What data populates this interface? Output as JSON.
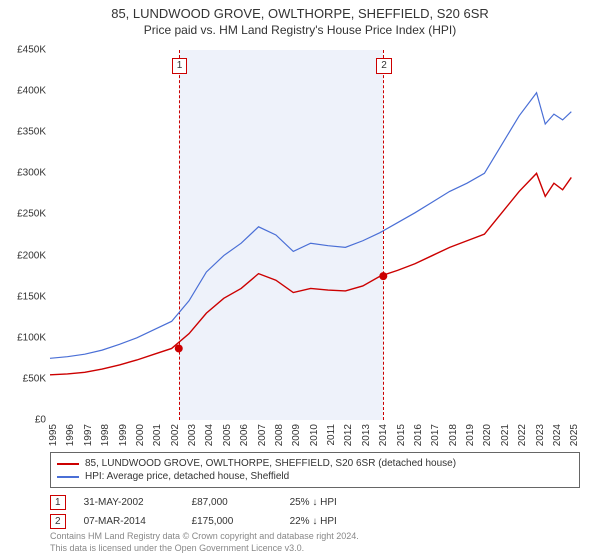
{
  "title": "85, LUNDWOOD GROVE, OWLTHORPE, SHEFFIELD, S20 6SR",
  "subtitle": "Price paid vs. HM Land Registry's House Price Index (HPI)",
  "chart": {
    "type": "line",
    "background_color": "#ffffff",
    "band_color": "#eef2fa",
    "band_start_year": 2002.41,
    "band_end_year": 2014.18,
    "x": {
      "min": 1995,
      "max": 2025.5,
      "years": [
        1995,
        1996,
        1997,
        1998,
        1999,
        2000,
        2001,
        2002,
        2003,
        2004,
        2005,
        2006,
        2007,
        2008,
        2009,
        2010,
        2011,
        2012,
        2013,
        2014,
        2015,
        2016,
        2017,
        2018,
        2019,
        2020,
        2021,
        2022,
        2023,
        2024,
        2025
      ]
    },
    "y": {
      "min": 0,
      "max": 450000,
      "step": 50000,
      "prefix": "£",
      "suffix": "K",
      "divisor": 1000
    },
    "axis_fontsize": 10,
    "series": {
      "hpi": {
        "label": "HPI: Average price, detached house, Sheffield",
        "color": "#4a6fd6",
        "width": 1.2,
        "points": [
          [
            1995,
            75000
          ],
          [
            1996,
            77000
          ],
          [
            1997,
            80000
          ],
          [
            1998,
            85000
          ],
          [
            1999,
            92000
          ],
          [
            2000,
            100000
          ],
          [
            2001,
            110000
          ],
          [
            2002,
            120000
          ],
          [
            2003,
            145000
          ],
          [
            2004,
            180000
          ],
          [
            2005,
            200000
          ],
          [
            2006,
            215000
          ],
          [
            2007,
            235000
          ],
          [
            2008,
            225000
          ],
          [
            2009,
            205000
          ],
          [
            2010,
            215000
          ],
          [
            2011,
            212000
          ],
          [
            2012,
            210000
          ],
          [
            2013,
            218000
          ],
          [
            2014,
            228000
          ],
          [
            2015,
            240000
          ],
          [
            2016,
            252000
          ],
          [
            2017,
            265000
          ],
          [
            2018,
            278000
          ],
          [
            2019,
            288000
          ],
          [
            2020,
            300000
          ],
          [
            2021,
            335000
          ],
          [
            2022,
            370000
          ],
          [
            2023,
            398000
          ],
          [
            2023.5,
            360000
          ],
          [
            2024,
            372000
          ],
          [
            2024.5,
            365000
          ],
          [
            2025,
            375000
          ]
        ]
      },
      "property": {
        "label": "85, LUNDWOOD GROVE, OWLTHORPE, SHEFFIELD, S20 6SR (detached house)",
        "color": "#cc0000",
        "width": 1.4,
        "points": [
          [
            1995,
            55000
          ],
          [
            1996,
            56000
          ],
          [
            1997,
            58000
          ],
          [
            1998,
            62000
          ],
          [
            1999,
            67000
          ],
          [
            2000,
            73000
          ],
          [
            2001,
            80000
          ],
          [
            2002,
            87000
          ],
          [
            2003,
            105000
          ],
          [
            2004,
            130000
          ],
          [
            2005,
            148000
          ],
          [
            2006,
            160000
          ],
          [
            2007,
            178000
          ],
          [
            2008,
            170000
          ],
          [
            2009,
            155000
          ],
          [
            2010,
            160000
          ],
          [
            2011,
            158000
          ],
          [
            2012,
            157000
          ],
          [
            2013,
            163000
          ],
          [
            2014,
            175000
          ],
          [
            2015,
            182000
          ],
          [
            2016,
            190000
          ],
          [
            2017,
            200000
          ],
          [
            2018,
            210000
          ],
          [
            2019,
            218000
          ],
          [
            2020,
            226000
          ],
          [
            2021,
            252000
          ],
          [
            2022,
            278000
          ],
          [
            2023,
            300000
          ],
          [
            2023.5,
            272000
          ],
          [
            2024,
            288000
          ],
          [
            2024.5,
            280000
          ],
          [
            2025,
            295000
          ]
        ]
      }
    },
    "markers": [
      {
        "label": "1",
        "year": 2002.41,
        "price": 87000
      },
      {
        "label": "2",
        "year": 2014.18,
        "price": 175000
      }
    ]
  },
  "legend": {
    "border_color": "#666666",
    "fontsize": 10,
    "items": [
      {
        "series": "property"
      },
      {
        "series": "hpi"
      }
    ]
  },
  "transactions": [
    {
      "badge": "1",
      "date": "31-MAY-2002",
      "price": "£87,000",
      "delta": "25% ↓ HPI"
    },
    {
      "badge": "2",
      "date": "07-MAR-2014",
      "price": "£175,000",
      "delta": "22% ↓ HPI"
    }
  ],
  "footer": {
    "line1": "Contains HM Land Registry data © Crown copyright and database right 2024.",
    "line2": "This data is licensed under the Open Government Licence v3.0."
  }
}
